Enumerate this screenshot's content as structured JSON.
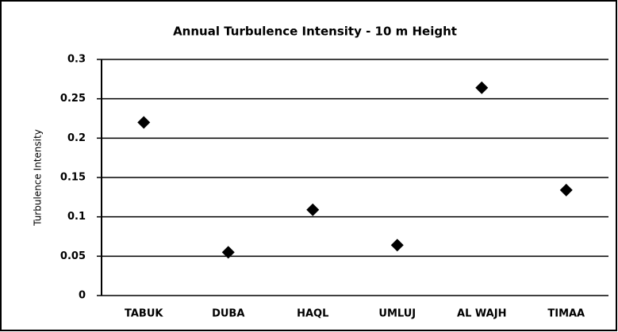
{
  "chart_data": {
    "type": "scatter",
    "title": "Annual Turbulence Intensity - 10 m Height",
    "y_label": "Turbulence Intensity",
    "categories": [
      "TABUK",
      "DUBA",
      "HAQL",
      "UMLUJ",
      "AL WAJH",
      "TIMAA"
    ],
    "values": [
      0.22,
      0.055,
      0.109,
      0.064,
      0.264,
      0.134
    ],
    "color": "#000000",
    "ylim": [
      0,
      0.3
    ],
    "yticks": [
      0,
      0.05,
      0.1,
      0.15,
      0.2,
      0.25,
      0.3
    ],
    "grid": true
  }
}
